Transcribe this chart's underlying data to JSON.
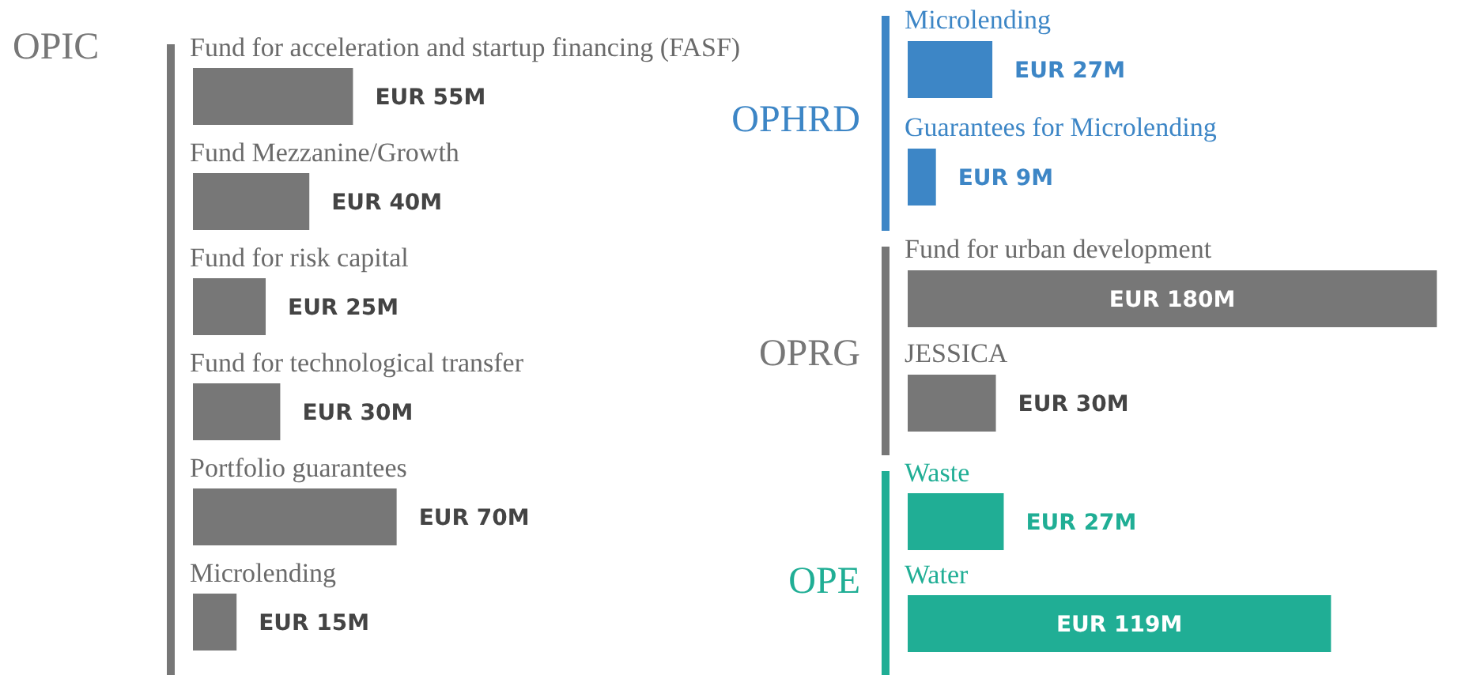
{
  "chart_data": [
    {
      "type": "bar",
      "orientation": "horizontal",
      "title": "OPIC",
      "color": "#777777",
      "categories": [
        "Fund for acceleration and startup financing (FASF)",
        "Fund Mezzanine/Growth",
        "Fund for risk capital",
        "Fund for technological transfer",
        "Portfolio guarantees",
        "Microlending"
      ],
      "values": [
        55000000,
        40000000,
        25000000,
        30000000,
        70000000,
        15000000
      ],
      "data_labels": true,
      "value_labels": [
        "EUR 55M",
        "EUR 40M",
        "EUR 25M",
        "EUR 30M",
        "EUR 70M",
        "EUR 15M"
      ]
    },
    {
      "type": "bar",
      "orientation": "horizontal",
      "title": "OPHRD",
      "color": "#3d86c6",
      "categories": [
        "Microlending",
        "Guarantees for Microlending"
      ],
      "values": [
        27000000,
        9000000
      ],
      "data_labels": true,
      "value_labels": [
        "EUR 27M",
        "EUR 9M"
      ]
    },
    {
      "type": "bar",
      "orientation": "horizontal",
      "title": "OPRG",
      "color": "#777777",
      "categories": [
        "Fund for urban development",
        "JESSICA"
      ],
      "values": [
        180000000,
        30000000
      ],
      "data_labels": true,
      "value_labels": [
        "EUR 180M",
        "EUR 30M"
      ]
    },
    {
      "type": "bar",
      "orientation": "horizontal",
      "title": "OPE",
      "color": "#20ae95",
      "categories": [
        "Waste",
        "Water"
      ],
      "values": [
        27000000,
        119000000
      ],
      "data_labels": true,
      "value_labels": [
        "EUR 27M",
        "EUR 119M"
      ]
    }
  ]
}
